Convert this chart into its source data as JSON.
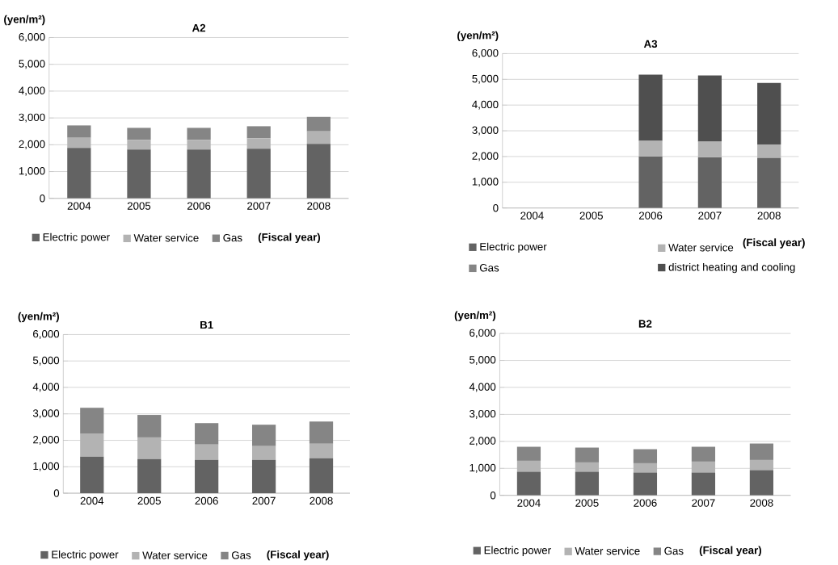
{
  "chart_data": [
    {
      "type": "bar",
      "title": "A2",
      "ylabel": "(yen/m²)",
      "xlabel": "(Fiscal year)",
      "categories": [
        "2004",
        "2005",
        "2006",
        "2007",
        "2008"
      ],
      "stacked": true,
      "grid": "y",
      "legend": "bottom",
      "ylim": [
        0,
        6000
      ],
      "yticks": [
        0,
        {
          "value": 1000,
          "label": "1,000"
        },
        {
          "value": 2000,
          "label": "2,000"
        },
        {
          "value": 3000,
          "label": "3,000"
        },
        {
          "value": 4000,
          "label": "4,000"
        },
        {
          "value": 5000,
          "label": "5,000"
        },
        {
          "value": 6000,
          "label": "6,000"
        }
      ],
      "series": [
        {
          "name": "Electric power",
          "color": "#636363",
          "values": [
            1880,
            1820,
            1820,
            1850,
            2030
          ]
        },
        {
          "name": "Water service",
          "color": "#b3b3b3",
          "values": [
            380,
            360,
            360,
            390,
            470
          ]
        },
        {
          "name": "Gas",
          "color": "#858585",
          "values": [
            460,
            450,
            450,
            450,
            540
          ]
        }
      ]
    },
    {
      "type": "bar",
      "title": "A3",
      "ylabel": "(yen/m²)",
      "xlabel": "(Fiscal year)",
      "categories": [
        "2004",
        "2005",
        "2006",
        "2007",
        "2008"
      ],
      "stacked": true,
      "grid": "y",
      "legend": "bottom",
      "ylim": [
        0,
        6000
      ],
      "yticks": [
        0,
        {
          "value": 1000,
          "label": "1,000"
        },
        {
          "value": 2000,
          "label": "2,000"
        },
        {
          "value": 3000,
          "label": "3,000"
        },
        {
          "value": 4000,
          "label": "4,000"
        },
        {
          "value": 5000,
          "label": "5,000"
        },
        {
          "value": 6000,
          "label": "6,000"
        }
      ],
      "series": [
        {
          "name": "Electric power",
          "color": "#636363",
          "values": [
            null,
            null,
            2000,
            1970,
            1940
          ]
        },
        {
          "name": "Water service",
          "color": "#b3b3b3",
          "values": [
            null,
            null,
            610,
            610,
            530
          ]
        },
        {
          "name": "Gas",
          "color": "#858585",
          "values": [
            null,
            null,
            null,
            null,
            null
          ]
        },
        {
          "name": "district heating and cooling",
          "color": "#4f4f4f",
          "values": [
            null,
            null,
            2570,
            2570,
            2390
          ]
        }
      ]
    },
    {
      "type": "bar",
      "title": "B1",
      "ylabel": "(yen/m²)",
      "xlabel": "(Fiscal year)",
      "categories": [
        "2004",
        "2005",
        "2006",
        "2007",
        "2008"
      ],
      "stacked": true,
      "grid": "y",
      "legend": "bottom",
      "ylim": [
        0,
        6000
      ],
      "yticks": [
        0,
        {
          "value": 1000,
          "label": "1,000"
        },
        {
          "value": 2000,
          "label": "2,000"
        },
        {
          "value": 3000,
          "label": "3,000"
        },
        {
          "value": 4000,
          "label": "4,000"
        },
        {
          "value": 5000,
          "label": "5,000"
        },
        {
          "value": 6000,
          "label": "6,000"
        }
      ],
      "series": [
        {
          "name": "Electric power",
          "color": "#636363",
          "values": [
            1380,
            1290,
            1260,
            1260,
            1320
          ]
        },
        {
          "name": "Water service",
          "color": "#b3b3b3",
          "values": [
            880,
            820,
            580,
            520,
            550
          ]
        },
        {
          "name": "Gas",
          "color": "#858585",
          "values": [
            970,
            850,
            810,
            810,
            840
          ]
        }
      ]
    },
    {
      "type": "bar",
      "title": "B2",
      "ylabel": "(yen/m²)",
      "xlabel": "(Fiscal year)",
      "categories": [
        "2004",
        "2005",
        "2006",
        "2007",
        "2008"
      ],
      "stacked": true,
      "grid": "y",
      "legend": "bottom",
      "ylim": [
        0,
        6000
      ],
      "yticks": [
        0,
        {
          "value": 1000,
          "label": "1,000"
        },
        {
          "value": 2000,
          "label": "2,000"
        },
        {
          "value": 3000,
          "label": "3,000"
        },
        {
          "value": 4000,
          "label": "4,000"
        },
        {
          "value": 5000,
          "label": "5,000"
        },
        {
          "value": 6000,
          "label": "6,000"
        }
      ],
      "series": [
        {
          "name": "Electric power",
          "color": "#636363",
          "values": [
            870,
            870,
            840,
            840,
            930
          ]
        },
        {
          "name": "Water service",
          "color": "#b3b3b3",
          "values": [
            410,
            350,
            350,
            410,
            380
          ]
        },
        {
          "name": "Gas",
          "color": "#858585",
          "values": [
            520,
            550,
            520,
            550,
            610
          ]
        }
      ]
    }
  ]
}
